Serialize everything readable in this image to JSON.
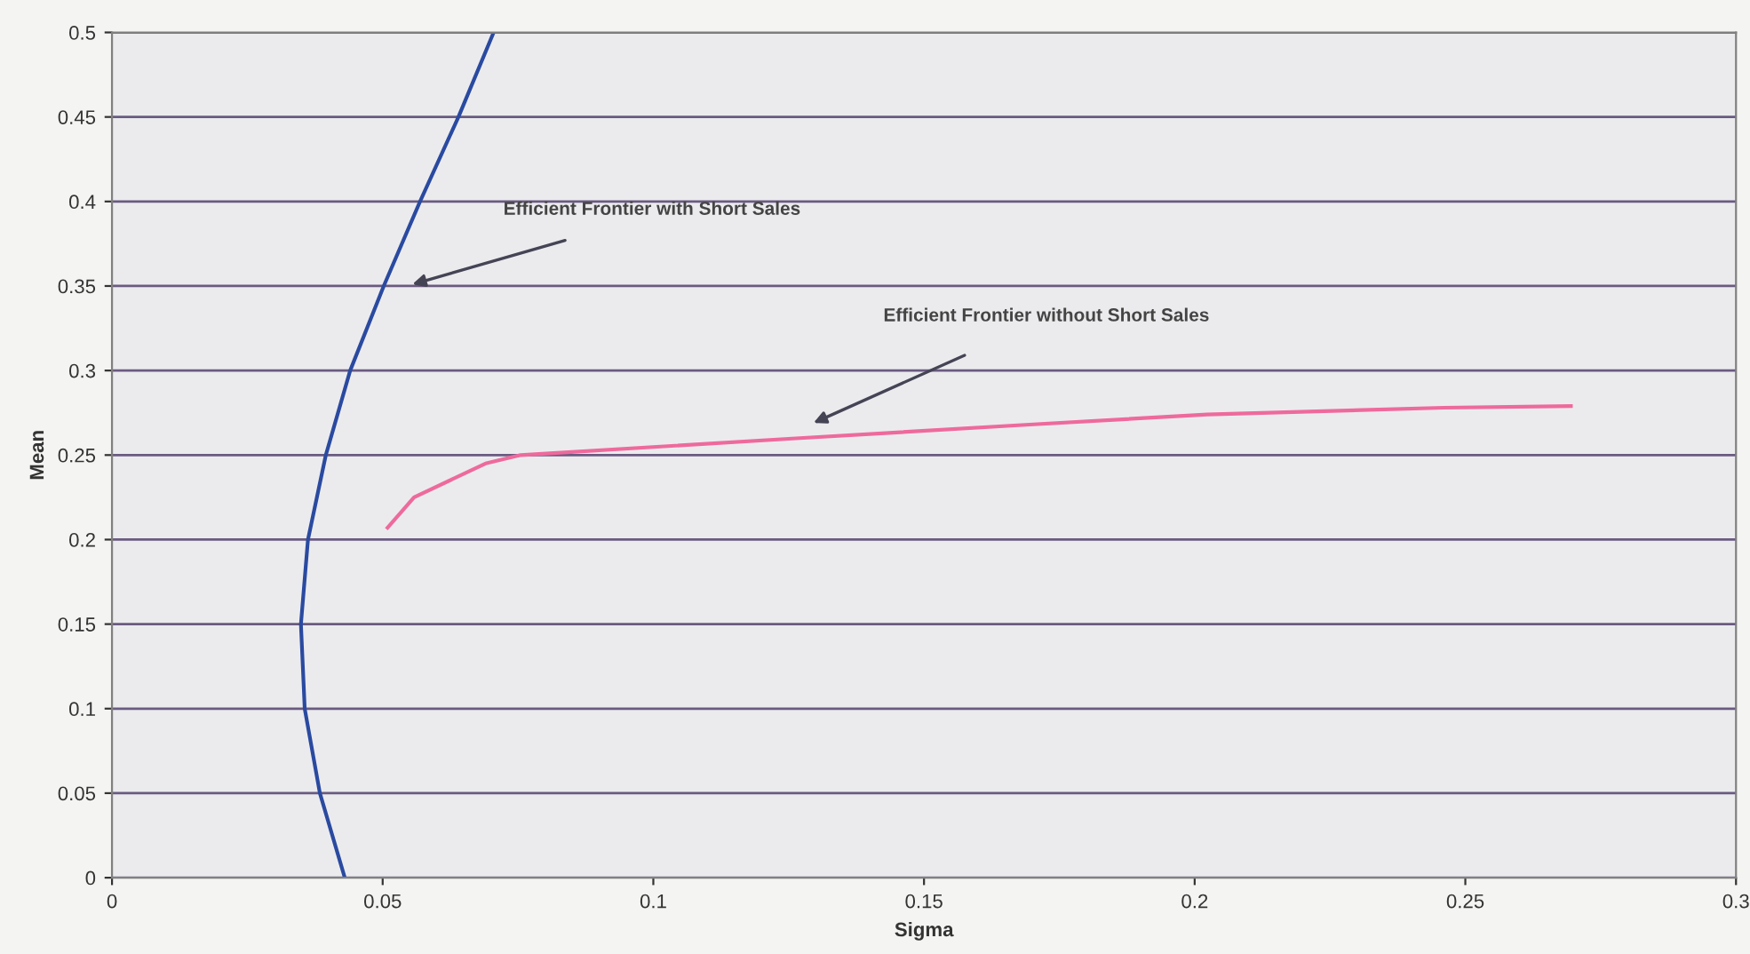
{
  "chart_data": {
    "type": "line",
    "xlabel": "Sigma",
    "ylabel": "Mean",
    "series": [
      {
        "color": "#2a4aa0",
        "x": [
          0.0705,
          0.064,
          0.0569,
          0.0502,
          0.044,
          0.0395,
          0.0362,
          0.0349,
          0.0356,
          0.0384,
          0.043
        ],
        "values": [
          0.5,
          0.45,
          0.4,
          0.35,
          0.3,
          0.25,
          0.2,
          0.15,
          0.1,
          0.05,
          0.0
        ]
      },
      {
        "color": "#ee6a9c",
        "x": [
          0.0509,
          0.0558,
          0.069,
          0.0755,
          0.127,
          0.1695,
          0.2023,
          0.246,
          0.2695
        ],
        "values": [
          0.207,
          0.225,
          0.245,
          0.25,
          0.26,
          0.268,
          0.274,
          0.278,
          0.279
        ]
      }
    ],
    "annotations": [
      "Efficient Frontier with Short Sales",
      "Efficient Frontier without Short Sales"
    ],
    "xlim": [
      0,
      0.3
    ],
    "xticks": [
      0,
      0.05,
      0.1,
      0.15,
      0.2,
      0.25,
      0.3
    ],
    "ylim": [
      0,
      0.5
    ],
    "yticks": [
      0,
      0.05,
      0.1,
      0.15,
      0.2,
      0.25,
      0.3,
      0.35,
      0.4,
      0.45,
      0.5
    ],
    "grid": "y",
    "marker": "none",
    "line_style": "solid"
  }
}
